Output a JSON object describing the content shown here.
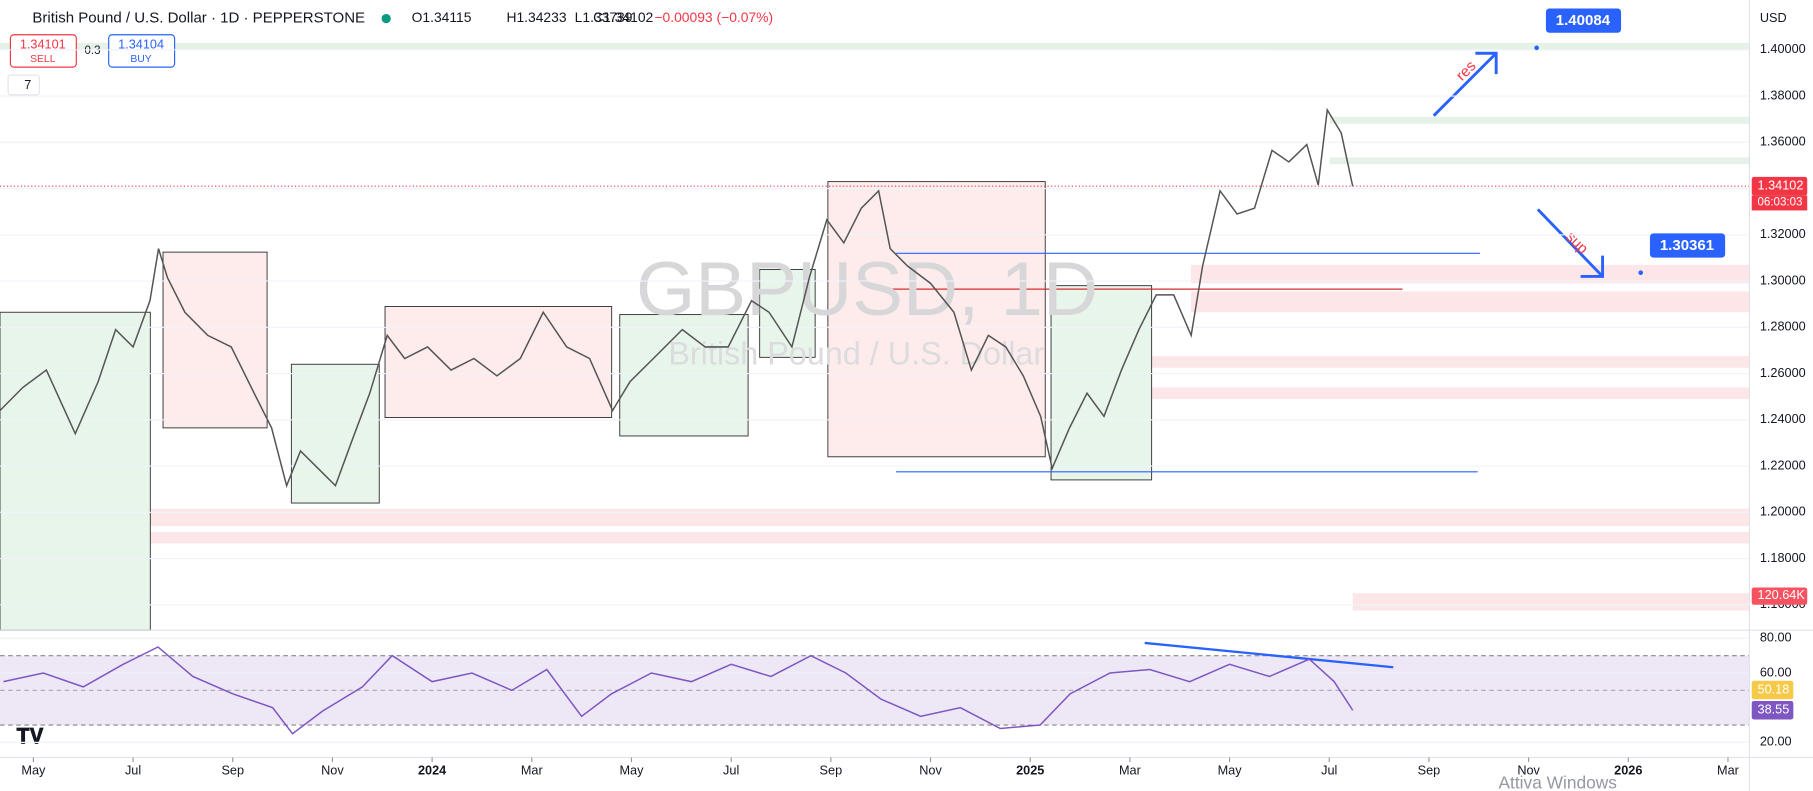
{
  "header": {
    "symbol": "British Pound / U.S. Dollar · 1D · PEPPERSTONE",
    "o": "O1.34115",
    "h": "H1.34233",
    "l": "L1.33739",
    "c": "C1.34102",
    "change": "−0.00093 (−0.07%)",
    "sell_price": "1.34101",
    "sell": "SELL",
    "spread": "0.3",
    "buy_price": "1.34104",
    "buy": "BUY",
    "indicators_count": "7",
    "currency": "USD"
  },
  "watermark": {
    "symbol": "GBPUSD, 1D",
    "name": "British Pound / U.S. Dollar"
  },
  "annotations": {
    "res": "res",
    "sup": "sup",
    "windows": "Attiva Windows"
  },
  "chart_data": [
    {
      "type": "line",
      "color": "#555555",
      "x": [
        -0.67,
        -0.21,
        0.26,
        0.84,
        1.3,
        1.65,
        2.0,
        2.34,
        2.51,
        2.69,
        3.04,
        3.5,
        3.97,
        4.43,
        4.78,
        5.08,
        5.36,
        5.71,
        6.06,
        6.4,
        6.75,
        7.1,
        7.45,
        7.91,
        8.38,
        8.84,
        9.3,
        9.77,
        10.23,
        10.7,
        11.16,
        11.62,
        11.97,
        12.44,
        13.02,
        13.48,
        13.94,
        14.41,
        14.76,
        15.22,
        15.57,
        15.92,
        16.26,
        16.61,
        16.96,
        17.19,
        17.54,
        18.0,
        18.47,
        18.82,
        19.16,
        19.51,
        19.86,
        20.21,
        20.44,
        20.79,
        21.14,
        21.48,
        21.83,
        22.18,
        22.53,
        22.88,
        23.23,
        23.46,
        23.81,
        24.15,
        24.5,
        24.85,
        25.19,
        25.55,
        25.78,
        25.96,
        26.24,
        26.47
      ],
      "values": [
        1.244,
        1.254,
        1.2615,
        1.234,
        1.2565,
        1.279,
        1.2715,
        1.2915,
        1.314,
        1.3015,
        1.2865,
        1.2765,
        1.2715,
        1.2515,
        1.2365,
        1.2115,
        1.2265,
        1.219,
        1.2115,
        1.2315,
        1.2515,
        1.2765,
        1.2665,
        1.2715,
        1.2615,
        1.2665,
        1.259,
        1.2665,
        1.2865,
        1.2715,
        1.2665,
        1.244,
        1.2565,
        1.2665,
        1.279,
        1.2715,
        1.2715,
        1.2915,
        1.2865,
        1.2715,
        1.3015,
        1.3265,
        1.3165,
        1.3315,
        1.339,
        1.314,
        1.3065,
        1.299,
        1.2865,
        1.2615,
        1.2765,
        1.2715,
        1.259,
        1.2415,
        1.219,
        1.2365,
        1.2515,
        1.2415,
        1.2615,
        1.279,
        1.294,
        1.294,
        1.2765,
        1.3065,
        1.339,
        1.329,
        1.3315,
        1.3565,
        1.3515,
        1.359,
        1.3415,
        1.374,
        1.364,
        1.34102
      ],
      "xlim": [
        -0.67,
        34.43
      ],
      "xticks": [
        {
          "value": 0,
          "label": "May"
        },
        {
          "value": 2,
          "label": "Jul"
        },
        {
          "value": 4,
          "label": "Sep"
        },
        {
          "value": 6,
          "label": "Nov"
        },
        {
          "value": 8,
          "label": "2024"
        },
        {
          "value": 10,
          "label": "Mar"
        },
        {
          "value": 12,
          "label": "May"
        },
        {
          "value": 14,
          "label": "Jul"
        },
        {
          "value": 16,
          "label": "Sep"
        },
        {
          "value": 18,
          "label": "Nov"
        },
        {
          "value": 20,
          "label": "2025"
        },
        {
          "value": 22,
          "label": "Mar"
        },
        {
          "value": 24,
          "label": "May"
        },
        {
          "value": 26,
          "label": "Jul"
        },
        {
          "value": 28,
          "label": "Sep"
        },
        {
          "value": 30,
          "label": "Nov"
        },
        {
          "value": 32,
          "label": "2026"
        },
        {
          "value": 34,
          "label": "Mar"
        }
      ],
      "ylim": [
        1.149,
        1.4215
      ],
      "yticks": [
        {
          "value": 1.16,
          "label": "1.16000"
        },
        {
          "value": 1.18,
          "label": "1.18000"
        },
        {
          "value": 1.2,
          "label": "1.20000"
        },
        {
          "value": 1.22,
          "label": "1.22000"
        },
        {
          "value": 1.24,
          "label": "1.24000"
        },
        {
          "value": 1.26,
          "label": "1.26000"
        },
        {
          "value": 1.28,
          "label": "1.28000"
        },
        {
          "value": 1.3,
          "label": "1.30000"
        },
        {
          "value": 1.32,
          "label": "1.32000"
        },
        {
          "value": 1.34,
          "label": "1.34000"
        },
        {
          "value": 1.36,
          "label": "1.36000"
        },
        {
          "value": 1.38,
          "label": "1.38000"
        },
        {
          "value": 1.4,
          "label": "1.40000"
        }
      ],
      "levels": [
        {
          "value": 1.40084,
          "label": "1.40084"
        },
        {
          "value": 1.30361,
          "label": "1.30361"
        }
      ],
      "last_price": {
        "value": 1.34102,
        "label": "1.34102"
      },
      "countdown": "06:03:03",
      "volume_label": "120.64K"
    },
    {
      "type": "line",
      "color": "#7e57c2",
      "x": [
        -0.6,
        0.2,
        1.0,
        1.8,
        2.5,
        3.2,
        4.0,
        4.8,
        5.2,
        5.8,
        6.6,
        7.2,
        8.0,
        8.8,
        9.6,
        10.3,
        11.0,
        11.6,
        12.4,
        13.2,
        14.0,
        14.8,
        15.6,
        16.3,
        17.0,
        17.8,
        18.6,
        19.4,
        20.2,
        20.8,
        21.6,
        22.4,
        23.2,
        24.0,
        24.8,
        25.6,
        26.1,
        26.47
      ],
      "values": [
        55,
        60,
        52,
        65,
        75,
        58,
        48,
        40,
        25,
        38,
        52,
        70,
        55,
        60,
        50,
        62,
        35,
        48,
        60,
        55,
        65,
        58,
        70,
        60,
        45,
        35,
        40,
        28,
        30,
        48,
        60,
        62,
        55,
        65,
        58,
        68,
        55,
        38.55
      ],
      "xlim": [
        -0.67,
        34.43
      ],
      "ylim": [
        11.33,
        84.67
      ],
      "yticks": [
        {
          "value": 20,
          "label": "20.00"
        },
        {
          "value": 60,
          "label": "60.00"
        },
        {
          "value": 80,
          "label": "80.00"
        }
      ],
      "last_value": {
        "value": 38.55,
        "label": "38.55"
      },
      "ma_value": {
        "value": 50.18,
        "label": "50.18"
      }
    }
  ]
}
